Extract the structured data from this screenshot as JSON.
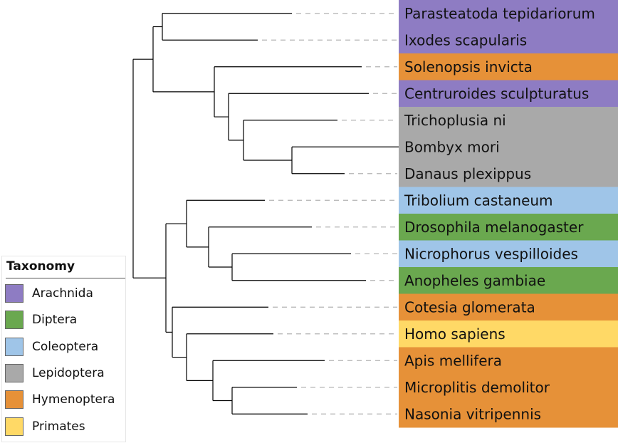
{
  "colors": {
    "Arachnida": "#8e7cc3",
    "Diptera": "#6aa84f",
    "Coleoptera": "#9fc5e8",
    "Lepidoptera": "#a9a9a9",
    "Hymenoptera": "#e69138",
    "Primates": "#ffd966"
  },
  "tips": [
    {
      "name": "Parasteatoda tepidariorum",
      "group": "Arachnida"
    },
    {
      "name": "Ixodes scapularis",
      "group": "Arachnida"
    },
    {
      "name": "Solenopsis invicta",
      "group": "Hymenoptera"
    },
    {
      "name": "Centruroides sculpturatus",
      "group": "Arachnida"
    },
    {
      "name": "Trichoplusia ni",
      "group": "Lepidoptera"
    },
    {
      "name": "Bombyx mori",
      "group": "Lepidoptera"
    },
    {
      "name": "Danaus plexippus",
      "group": "Lepidoptera"
    },
    {
      "name": "Tribolium castaneum",
      "group": "Coleoptera"
    },
    {
      "name": "Drosophila melanogaster",
      "group": "Diptera"
    },
    {
      "name": "Nicrophorus vespilloides",
      "group": "Coleoptera"
    },
    {
      "name": "Anopheles gambiae",
      "group": "Diptera"
    },
    {
      "name": "Cotesia glomerata",
      "group": "Hymenoptera"
    },
    {
      "name": "Homo sapiens",
      "group": "Primates"
    },
    {
      "name": "Apis mellifera",
      "group": "Hymenoptera"
    },
    {
      "name": "Microplitis demolitor",
      "group": "Hymenoptera"
    },
    {
      "name": "Nasonia vitripennis",
      "group": "Hymenoptera"
    }
  ],
  "legend": {
    "title": "Taxonomy",
    "items": [
      {
        "label": "Arachnida",
        "group": "Arachnida"
      },
      {
        "label": "Diptera",
        "group": "Diptera"
      },
      {
        "label": "Coleoptera",
        "group": "Coleoptera"
      },
      {
        "label": "Lepidoptera",
        "group": "Lepidoptera"
      },
      {
        "label": "Hymenoptera",
        "group": "Hymenoptera"
      },
      {
        "label": "Primates",
        "group": "Primates"
      }
    ]
  }
}
